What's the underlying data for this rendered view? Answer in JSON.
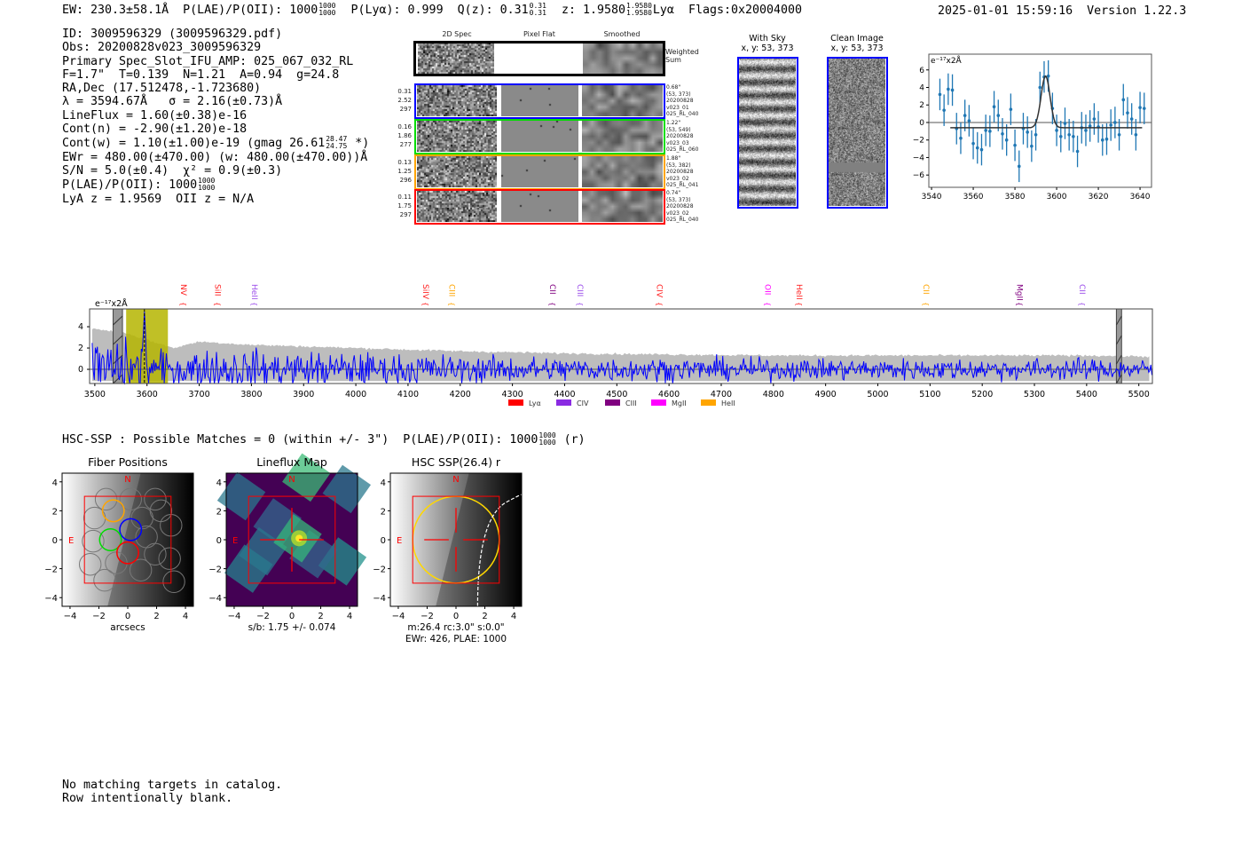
{
  "header": {
    "ew": "EW: 230.3±58.1Å",
    "plae": "P(LAE)/P(OII): 1000",
    "plae_hi": "1000",
    "plae_lo": "1000",
    "plya": "P(Lyα): 0.999",
    "qz": "Q(z): 0.31",
    "qz_hi": "0.31",
    "qz_lo": "0.31",
    "z": "z: 1.9580",
    "z_hi": "1.9580",
    "z_lo": "1.9580",
    "z_line": "Lyα",
    "flags": "Flags:0x20004000",
    "datetime": "2025-01-01 15:59:16",
    "version": "Version 1.22.3"
  },
  "info": {
    "id": "ID: 3009596329 (3009596329.pdf)",
    "obs": "Obs: 20200828v023_3009596329",
    "primary": "Primary Spec_Slot_IFU_AMP: 025_067_032_RL",
    "params": "F=1.7\"  T=0.139  N=1.21  A=0.94  g=24.8",
    "radec": "RA,Dec (17.512478,-1.723680)",
    "lambda": "λ = 3594.67Å   σ = 2.16(±0.73)Å",
    "lineflux": "LineFlux = 1.60(±0.38)e-16",
    "cont_n": "Cont(n) = -2.90(±1.20)e-18",
    "cont_w": "Cont(w) = 1.10(±1.00)e-19 (gmag 26.61",
    "gmag_hi": "28.47",
    "gmag_lo": "24.75",
    "cont_w_end": " *)",
    "ewr": "EWr = 480.00(±470.00) (w: 480.00(±470.00))Å",
    "sn": "S/N = 5.0(±0.4)  χ² = 0.9(±0.3)",
    "plae": "P(LAE)/P(OII): 1000",
    "plae_hi": "1000",
    "plae_lo": "1000",
    "z": "LyA z = 1.9569  OII z = N/A"
  },
  "spec2d": {
    "columns": [
      "2D Spec",
      "Pixel Flat",
      "Smoothed"
    ],
    "weighted_label": "Weighted\nSum",
    "rows": [
      {
        "color": "#0000ff",
        "left": "0.31\n2.52\n297",
        "right": "0.68\"\n(53, 373)\n20200828\nv023_01\n025_RL_040"
      },
      {
        "color": "#00dd00",
        "left": "0.16\n1.86\n277",
        "right": "1.22\"\n(53, 549)\n20200828\nv023_03\n025_RL_060"
      },
      {
        "color": "#ffa500",
        "left": "0.13\n1.25\n296",
        "right": "1.88\"\n(53, 382)\n20200828\nv023_02\n025_RL_041"
      },
      {
        "color": "#ff0000",
        "left": "0.11\n1.75\n297",
        "right": "0.74\"\n(53, 373)\n20200828\nv023_02\n025_RL_040"
      }
    ]
  },
  "cutouts": {
    "with_sky": {
      "title": "With Sky",
      "coords": "x, y: 53, 373"
    },
    "clean": {
      "title": "Clean Image",
      "coords": "x, y: 53, 373"
    }
  },
  "chart_data": [
    {
      "type": "scatter",
      "name": "zoom-spectrum",
      "ylabel": "e⁻¹⁷x2Å",
      "xlim": [
        3538.7,
        3645.5
      ],
      "ylim": [
        -7.4,
        7.8
      ],
      "xticks": [
        3540,
        3560,
        3580,
        3600,
        3620,
        3640
      ],
      "yticks": [
        -6,
        -4,
        -2,
        0,
        2,
        4,
        6
      ],
      "x": [
        3544,
        3546,
        3548,
        3550,
        3552,
        3554,
        3556,
        3558,
        3560,
        3562,
        3564,
        3566,
        3568,
        3570,
        3572,
        3574,
        3576,
        3578,
        3580,
        3582,
        3584,
        3586,
        3588,
        3590,
        3592,
        3594,
        3596,
        3598,
        3600,
        3602,
        3604,
        3606,
        3608,
        3610,
        3612,
        3614,
        3616,
        3618,
        3620,
        3622,
        3624,
        3626,
        3628,
        3630,
        3632,
        3634,
        3636,
        3638,
        3640,
        3642
      ],
      "y": [
        3.2,
        1.4,
        3.8,
        3.7,
        -0.7,
        -1.8,
        0.8,
        0.2,
        -2.4,
        -2.9,
        -3.1,
        -0.9,
        -1.0,
        1.8,
        0.8,
        -1.3,
        -2.0,
        1.5,
        -2.6,
        -5.0,
        -0.7,
        -1.1,
        -2.7,
        -1.4,
        4.0,
        5.2,
        5.3,
        1.6,
        -0.9,
        -1.6,
        -0.1,
        -1.4,
        -1.6,
        -3.3,
        -0.6,
        -0.9,
        -0.4,
        0.4,
        -0.5,
        -2.0,
        -1.9,
        -0.3,
        0.0,
        -1.4,
        2.6,
        1.1,
        0.4,
        -1.4,
        1.7,
        1.6
      ],
      "yerr": 1.8,
      "fit": {
        "center": 3594.67,
        "sigma": 2.16,
        "amplitude": 5.9,
        "continuum": -0.6,
        "range": [
          3549,
          3641
        ]
      }
    },
    {
      "type": "line",
      "name": "full-spectrum",
      "ylabel": "e⁻¹⁷x2Å",
      "xlim": [
        3490,
        5526
      ],
      "ylim": [
        -1.33,
        5.67
      ],
      "xticks": [
        3500,
        3600,
        3700,
        3800,
        3900,
        4000,
        4100,
        4200,
        4300,
        4400,
        4500,
        4600,
        4700,
        4800,
        4900,
        5000,
        5100,
        5200,
        5300,
        5400,
        5500
      ],
      "yticks": [
        0,
        2,
        4
      ],
      "error_band": {
        "x": [
          3500,
          3560,
          3650,
          3700,
          3800,
          4000,
          4200,
          4400,
          4600,
          4800,
          5000,
          5200,
          5400,
          5520
        ],
        "upper": [
          3.8,
          3.4,
          2.0,
          2.6,
          2.3,
          2.0,
          1.7,
          1.5,
          1.4,
          1.3,
          1.3,
          1.3,
          1.3,
          1.2
        ],
        "lower": -1.1
      },
      "highlight_band": [
        3560,
        3640
      ],
      "masked": [
        [
          3535,
          3553
        ],
        [
          5457,
          5467
        ]
      ],
      "line_center": 3595,
      "lines": [
        {
          "label": "NV",
          "x": 3670,
          "color": "#ff2020"
        },
        {
          "label": "SiII",
          "x": 3736,
          "color": "#ff2020"
        },
        {
          "label": "HeII",
          "x": 3806,
          "color": "#9b4dea"
        },
        {
          "label": "SiIV",
          "x": 4134,
          "color": "#ff2020"
        },
        {
          "label": "CIII",
          "x": 4184,
          "color": "#ffa500"
        },
        {
          "label": "CII",
          "x": 4377,
          "color": "#800080"
        },
        {
          "label": "CIII",
          "x": 4430,
          "color": "#9b4dea"
        },
        {
          "label": "CIV",
          "x": 4582,
          "color": "#ff2020"
        },
        {
          "label": "OII",
          "x": 4789,
          "color": "#ff00ff"
        },
        {
          "label": "HeII",
          "x": 4850,
          "color": "#ff2020"
        },
        {
          "label": "CII",
          "x": 5093,
          "color": "#ffa500"
        },
        {
          "label": "MgII",
          "x": 5272,
          "color": "#800080"
        },
        {
          "label": "CII",
          "x": 5392,
          "color": "#9b4dea"
        }
      ],
      "legend": [
        {
          "label": "Lyα",
          "color": "#ff0000"
        },
        {
          "label": "CIV",
          "color": "#8a2be2"
        },
        {
          "label": "CIII",
          "color": "#800080"
        },
        {
          "label": "MgII",
          "color": "#ff00ff"
        },
        {
          "label": "HeII",
          "color": "#ffa500"
        }
      ]
    }
  ],
  "hsc": {
    "title": "HSC-SSP : Possible Matches = 0 (within +/- 3\")  P(LAE)/P(OII): 1000",
    "title_hi": "1000",
    "title_lo": "1000",
    "title_end": " (r)",
    "panels": [
      {
        "title": "Fiber Positions",
        "xlabel": "arcsecs",
        "xlabel2": ""
      },
      {
        "title": "Lineflux Map",
        "xlabel": "s/b: 1.75 +/- 0.074",
        "xlabel2": ""
      },
      {
        "title": "HSC SSP(26.4) r",
        "xlabel": "m:26.4 rc:3.0\"  s:0.0\"",
        "xlabel2": "EWr: 426, PLAE: 1000"
      }
    ],
    "ticks": [
      -4,
      -2,
      0,
      2,
      4
    ],
    "north": "N",
    "east": "E"
  },
  "footer": {
    "line1": "No matching targets in catalog.",
    "line2": "Row intentionally blank."
  }
}
